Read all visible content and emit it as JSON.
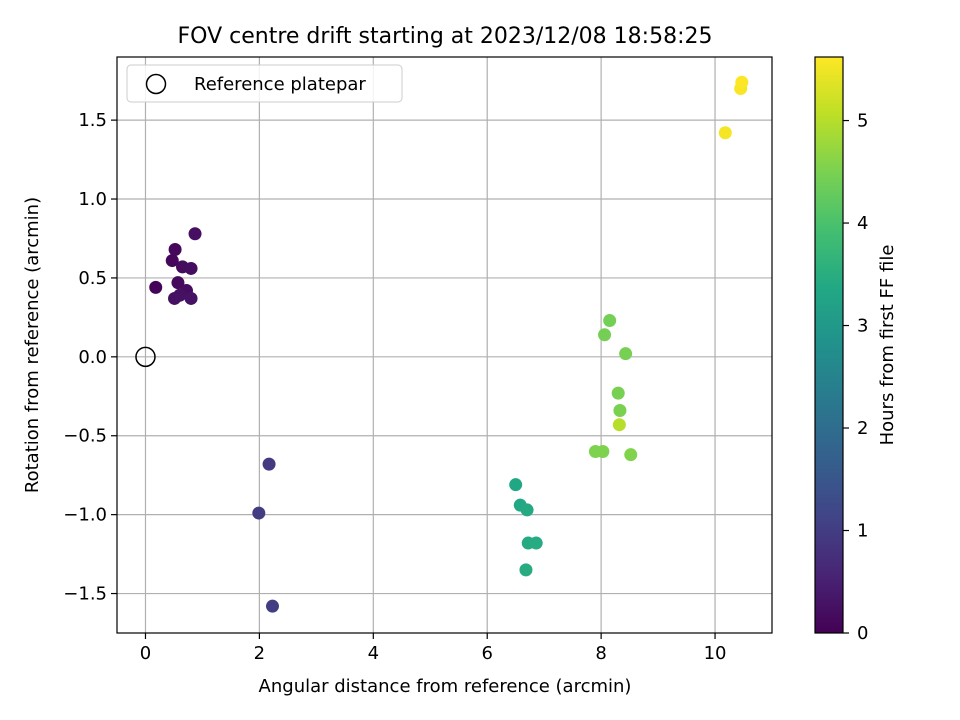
{
  "chart_data": {
    "type": "scatter",
    "title": "FOV centre drift starting at 2023/12/08 18:58:25",
    "xlabel": "Angular distance from reference (arcmin)",
    "ylabel": "Rotation from reference (arcmin)",
    "xlim": [
      -0.5,
      11.0
    ],
    "ylim": [
      -1.75,
      1.9
    ],
    "xticks": [
      0,
      2,
      4,
      6,
      8,
      10
    ],
    "yticks": [
      -1.5,
      -1.0,
      -0.5,
      0.0,
      0.5,
      1.0,
      1.5
    ],
    "xtick_labels": [
      "0",
      "2",
      "4",
      "6",
      "8",
      "10"
    ],
    "ytick_labels": [
      "−1.5",
      "−1.0",
      "−0.5",
      "0.0",
      "0.5",
      "1.0",
      "1.5"
    ],
    "grid": true,
    "colormap": "viridis",
    "colorbar": {
      "label": "Hours from first FF file",
      "range": [
        0,
        5.62
      ],
      "ticks": [
        0,
        1,
        2,
        3,
        4,
        5
      ],
      "tick_labels": [
        "0",
        "1",
        "2",
        "3",
        "4",
        "5"
      ]
    },
    "legend": {
      "placement": "upper-left",
      "entries": [
        {
          "label": "Reference platepar",
          "marker": "open-circle",
          "color": "#000000"
        }
      ]
    },
    "reference_point": {
      "x": 0,
      "y": 0
    },
    "points": [
      {
        "x": 0.18,
        "y": 0.44,
        "hours": 0.05
      },
      {
        "x": 0.47,
        "y": 0.61,
        "hours": 0.1
      },
      {
        "x": 0.52,
        "y": 0.68,
        "hours": 0.12
      },
      {
        "x": 0.57,
        "y": 0.47,
        "hours": 0.14
      },
      {
        "x": 0.65,
        "y": 0.57,
        "hours": 0.16
      },
      {
        "x": 0.72,
        "y": 0.42,
        "hours": 0.18
      },
      {
        "x": 0.8,
        "y": 0.56,
        "hours": 0.2
      },
      {
        "x": 0.87,
        "y": 0.78,
        "hours": 0.22
      },
      {
        "x": 0.51,
        "y": 0.37,
        "hours": 0.24
      },
      {
        "x": 0.6,
        "y": 0.39,
        "hours": 0.26
      },
      {
        "x": 0.8,
        "y": 0.37,
        "hours": 0.28
      },
      {
        "x": 2.17,
        "y": -0.68,
        "hours": 0.95
      },
      {
        "x": 1.99,
        "y": -0.99,
        "hours": 0.98
      },
      {
        "x": 2.23,
        "y": -1.58,
        "hours": 1.0
      },
      {
        "x": 6.5,
        "y": -0.81,
        "hours": 3.35
      },
      {
        "x": 6.58,
        "y": -0.94,
        "hours": 3.38
      },
      {
        "x": 6.7,
        "y": -0.97,
        "hours": 3.4
      },
      {
        "x": 6.72,
        "y": -1.18,
        "hours": 3.42
      },
      {
        "x": 6.86,
        "y": -1.18,
        "hours": 3.44
      },
      {
        "x": 6.68,
        "y": -1.35,
        "hours": 3.46
      },
      {
        "x": 8.15,
        "y": 0.23,
        "hours": 4.42
      },
      {
        "x": 8.06,
        "y": 0.14,
        "hours": 4.44
      },
      {
        "x": 8.43,
        "y": 0.02,
        "hours": 4.46
      },
      {
        "x": 8.3,
        "y": -0.23,
        "hours": 4.48
      },
      {
        "x": 8.33,
        "y": -0.34,
        "hours": 4.5
      },
      {
        "x": 7.9,
        "y": -0.6,
        "hours": 4.52
      },
      {
        "x": 8.03,
        "y": -0.6,
        "hours": 4.54
      },
      {
        "x": 8.52,
        "y": -0.62,
        "hours": 4.56
      },
      {
        "x": 8.32,
        "y": -0.43,
        "hours": 5.0
      },
      {
        "x": 10.18,
        "y": 1.42,
        "hours": 5.55
      },
      {
        "x": 10.45,
        "y": 1.7,
        "hours": 5.58
      },
      {
        "x": 10.47,
        "y": 1.74,
        "hours": 5.6
      }
    ]
  }
}
